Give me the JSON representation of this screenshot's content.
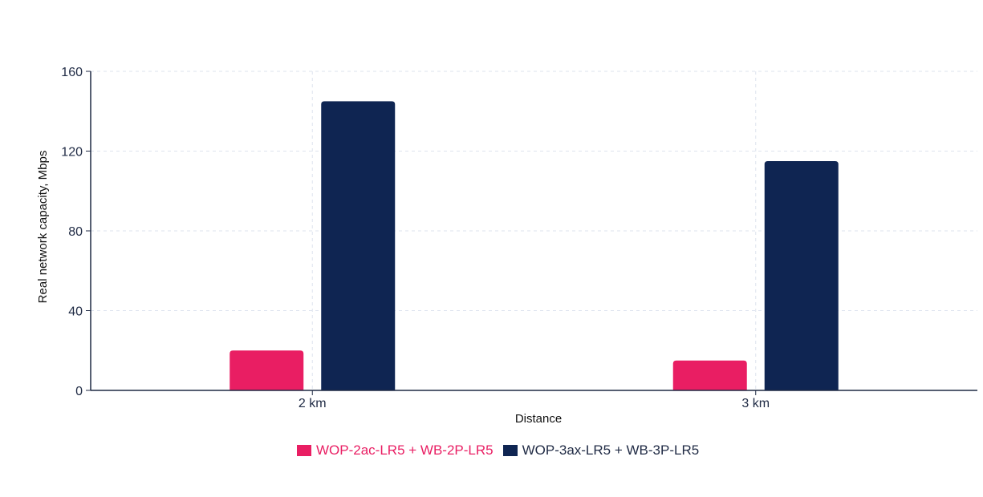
{
  "chart_data": {
    "type": "bar",
    "categories": [
      "2 km",
      "3 km"
    ],
    "series": [
      {
        "name": "WOP-2ac-LR5 + WB-2P-LR5",
        "values": [
          20,
          15
        ],
        "color": "#e91e63"
      },
      {
        "name": "WOP-3ax-LR5 + WB-3P-LR5",
        "values": [
          145,
          115
        ],
        "color": "#0f2552"
      }
    ],
    "xlabel": "Distance",
    "ylabel": "Real network capacity, Mbps",
    "ylim": [
      0,
      160
    ],
    "yticks": [
      "0",
      "40",
      "80",
      "120",
      "160"
    ],
    "grid": true,
    "legend_position": "bottom-center"
  }
}
